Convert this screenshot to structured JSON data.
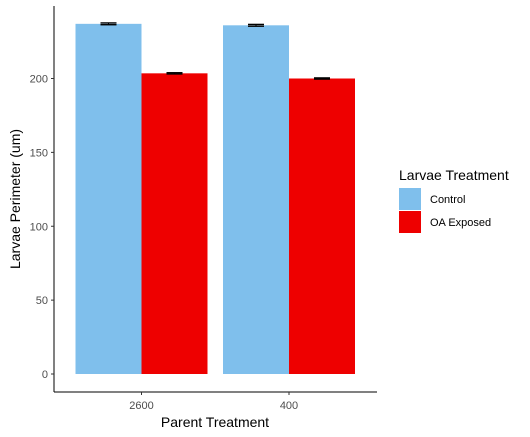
{
  "chart_data": {
    "type": "bar",
    "xlabel": "Parent Treatment",
    "ylabel": "Larvae Perimeter (um)",
    "categories": [
      "2600",
      "400"
    ],
    "ylim": [
      0,
      240
    ],
    "yticks": [
      0,
      50,
      100,
      150,
      200
    ],
    "grid": false,
    "legend": {
      "title": "Larvae Treatment",
      "placement": "right"
    },
    "series": [
      {
        "name": "Control",
        "color": "#7fbfec",
        "values": [
          237,
          236
        ],
        "errors": [
          0.6,
          0.6
        ]
      },
      {
        "name": "OA Exposed",
        "color": "#ee0000",
        "values": [
          203.5,
          200
        ],
        "errors": [
          0.4,
          0.4
        ]
      }
    ]
  }
}
